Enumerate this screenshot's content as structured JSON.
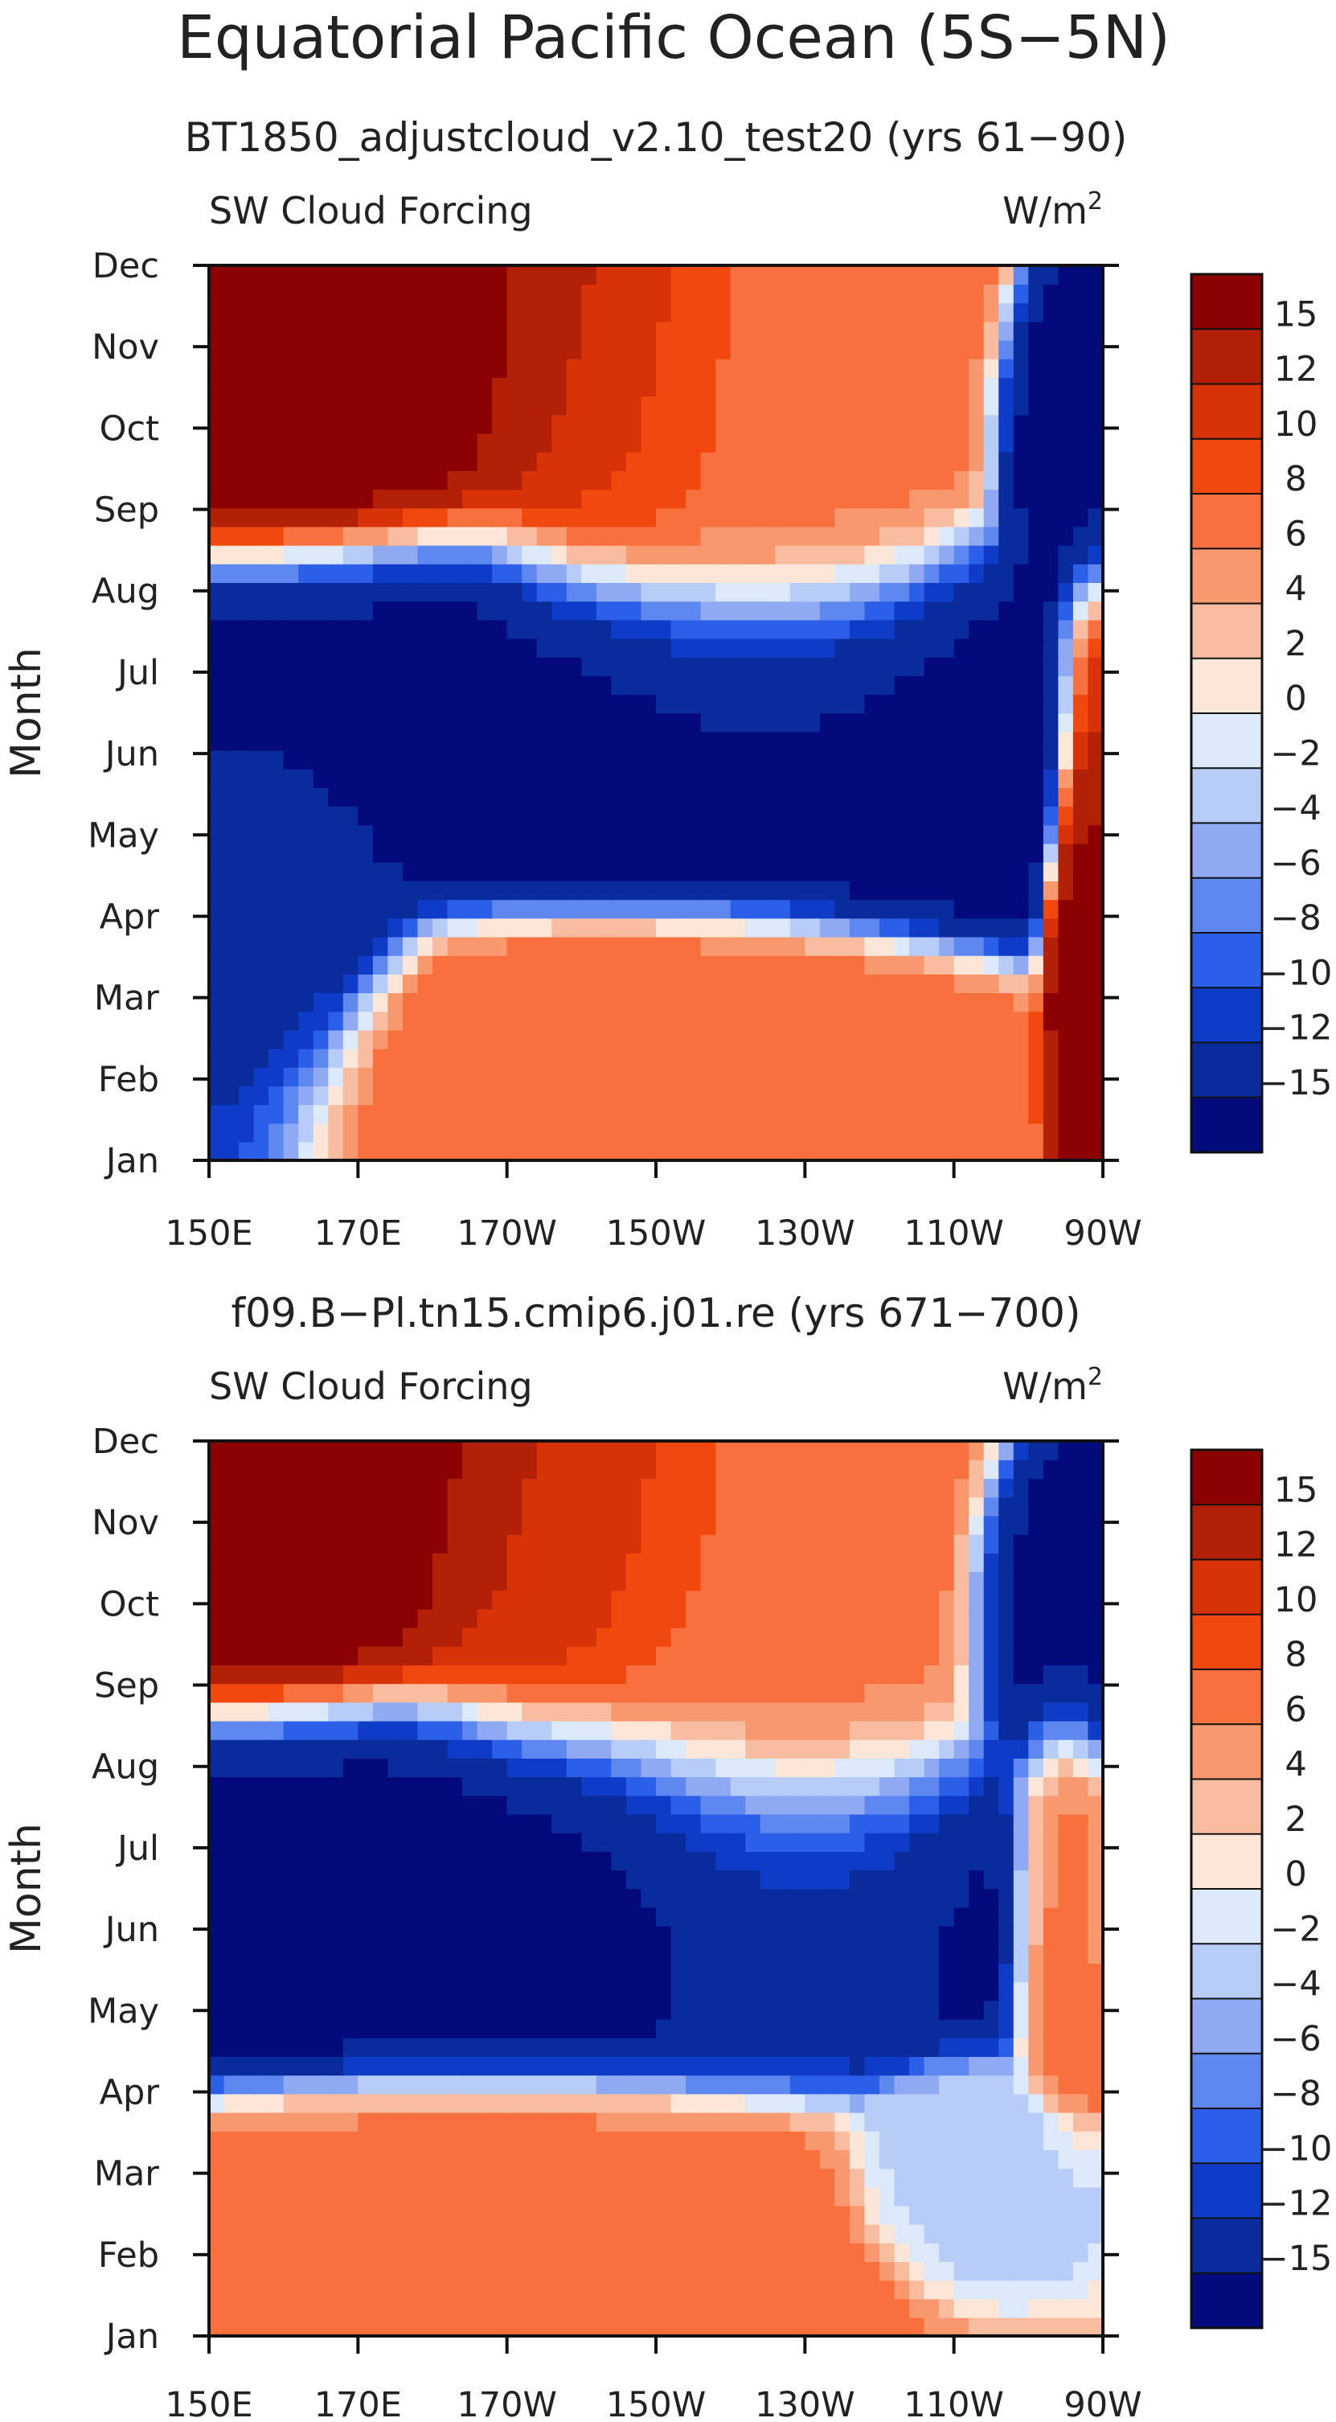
{
  "chart_data": {
    "type": "heatmap",
    "title": "Equatorial Pacific Ocean (5S−5N)",
    "contour_levels": [
      "15",
      "12",
      "10",
      "8",
      "6",
      "4",
      "2",
      "0",
      "−2",
      "−4",
      "−6",
      "−8",
      "−10",
      "−12",
      "−15"
    ],
    "colors": [
      "#8b0000",
      "#b22007",
      "#d83208",
      "#f0480e",
      "#f8703d",
      "#f8986e",
      "#f8bda1",
      "#fbe6d8",
      "#dbe9fb",
      "#b8ccf8",
      "#8fa9f2",
      "#5e87ef",
      "#2b5fe8",
      "#0f3cc6",
      "#0a2b9b",
      "#020a7c"
    ],
    "x_ticks": [
      "150E",
      "170E",
      "170W",
      "150W",
      "130W",
      "110W",
      "90W"
    ],
    "y_ticks": [
      "Jan",
      "Feb",
      "Mar",
      "Apr",
      "May",
      "Jun",
      "Jul",
      "Aug",
      "Sep",
      "Oct",
      "Nov",
      "Dec"
    ],
    "ylabel": "Month",
    "xlim": [
      "150E",
      "90W"
    ],
    "panels": [
      {
        "subtitle": "BT1850_adjustcloud_v2.10_test20 (yrs 61−90)",
        "variable": "SW Cloud Forcing",
        "units_prefix": "W/m",
        "units_exp": "2",
        "regions": [
          {
            "value": 17,
            "month": 11.2,
            "lon": 171,
            "lon_spread": 22,
            "month_spread": 1.9
          },
          {
            "value": 12,
            "month": 10.5,
            "lon": 205,
            "lon_spread": 12,
            "month_spread": 2.2
          },
          {
            "value": 7,
            "month": 9.6,
            "lon": 222,
            "lon_spread": 16,
            "month_spread": 2.4
          },
          {
            "value": -16,
            "month": 5.4,
            "lon": 208,
            "lon_spread": 38,
            "month_spread": 1.3
          },
          {
            "value": -14,
            "month": 3.2,
            "lon": 158,
            "lon_spread": 10,
            "month_spread": 1.3
          },
          {
            "value": -16,
            "month": 8.8,
            "lon": 268,
            "lon_spread": 6,
            "month_spread": 1.2
          },
          {
            "value": 8,
            "month": 1.4,
            "lon": 205,
            "lon_spread": 22,
            "month_spread": 0.9
          },
          {
            "value": 16,
            "month": 3.6,
            "lon": 269,
            "lon_spread": 3,
            "month_spread": 2.2
          }
        ]
      },
      {
        "subtitle": "f09.B−Pl.tn15.cmip6.j01.re (yrs 671−700)",
        "variable": "SW Cloud Forcing",
        "units_prefix": "W/m",
        "units_exp": "2",
        "regions": [
          {
            "value": 17,
            "month": 11.3,
            "lon": 168,
            "lon_spread": 20,
            "month_spread": 1.8
          },
          {
            "value": 11,
            "month": 10.3,
            "lon": 200,
            "lon_spread": 14,
            "month_spread": 2.0
          },
          {
            "value": 7,
            "month": 9.0,
            "lon": 225,
            "lon_spread": 16,
            "month_spread": 2.5
          },
          {
            "value": -16,
            "month": 5.6,
            "lon": 205,
            "lon_spread": 36,
            "month_spread": 1.3
          },
          {
            "value": -16,
            "month": 8.8,
            "lon": 265,
            "lon_spread": 7,
            "month_spread": 1.2
          },
          {
            "value": 7,
            "month": 1.2,
            "lon": 195,
            "lon_spread": 25,
            "month_spread": 1.0
          },
          {
            "value": 8,
            "month": 5.5,
            "lon": 265,
            "lon_spread": 4,
            "month_spread": 1.5
          },
          {
            "value": -3,
            "month": 2.0,
            "lon": 252,
            "lon_spread": 8,
            "month_spread": 0.7
          }
        ]
      }
    ]
  }
}
